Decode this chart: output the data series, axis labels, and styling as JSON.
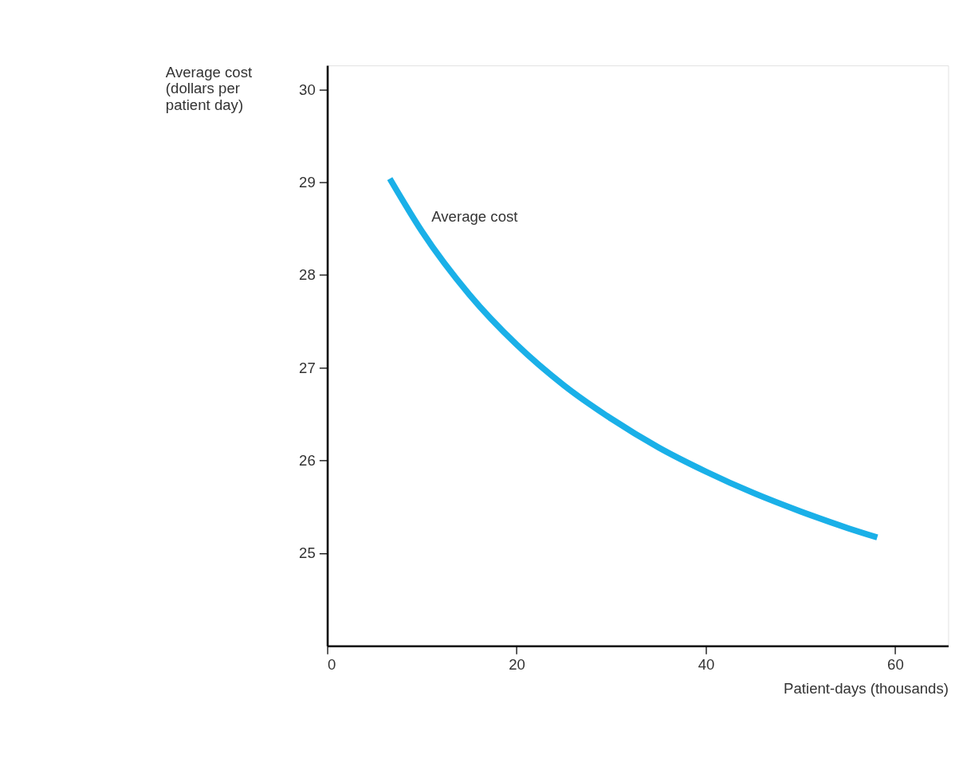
{
  "chart_data": {
    "type": "line",
    "xlabel": "Patient-days (thousands)",
    "ylabel": "Average cost (dollars per patient day)",
    "x": [
      6.6,
      10,
      15,
      20,
      25,
      30,
      35,
      40,
      45,
      50,
      55,
      58.1
    ],
    "series": [
      {
        "name": "Average cost",
        "color": "#1ab0e8",
        "values": [
          29.04,
          28.47,
          27.79,
          27.25,
          26.81,
          26.45,
          26.14,
          25.88,
          25.65,
          25.45,
          25.27,
          25.17
        ]
      }
    ],
    "xlim": [
      0,
      65.6
    ],
    "xticks": [
      {
        "value": 0,
        "label": "0"
      },
      20,
      40,
      60
    ],
    "ylim": [
      24,
      30.26
    ],
    "yticks": [
      25,
      26,
      27,
      28,
      29,
      30
    ],
    "grid": false,
    "marker": "none",
    "line_style": "solid"
  }
}
